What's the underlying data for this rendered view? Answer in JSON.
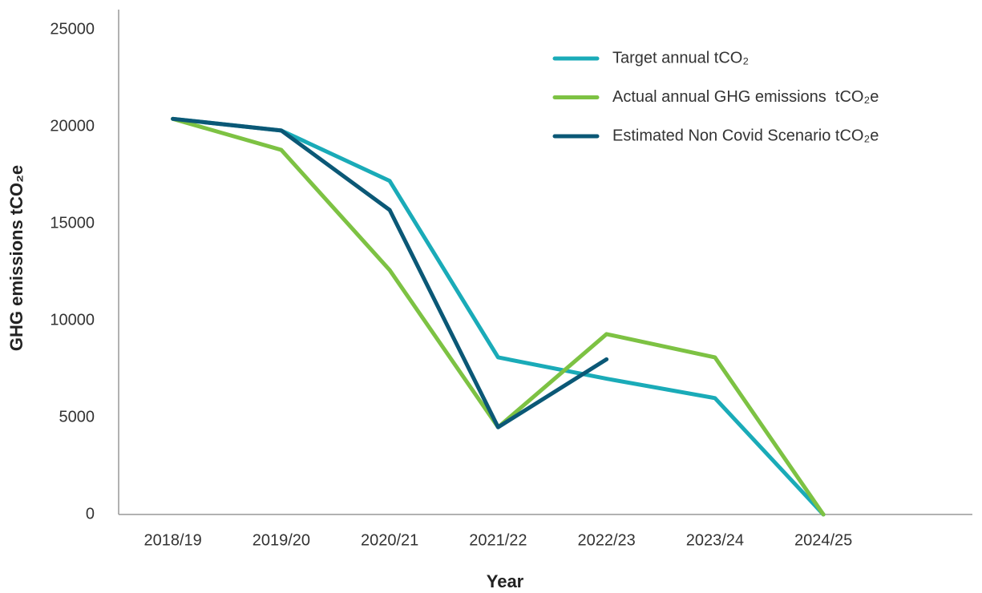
{
  "chart_data": {
    "type": "line",
    "x_label": "Year",
    "y_label": "GHG emissions tCO₂e",
    "categories": [
      "2018/19",
      "2019/20",
      "2020/21",
      "2021/22",
      "2022/23",
      "2023/24",
      "2024/25",
      null
    ],
    "series": [
      {
        "name": "Target annual tCO₂",
        "color": "#1aabb8",
        "values": [
          20400,
          19800,
          17200,
          8100,
          7000,
          6000,
          0,
          null
        ]
      },
      {
        "name": "Actual annual GHG emissions  tCO₂e",
        "color": "#7dc243",
        "values": [
          20400,
          18800,
          12600,
          4500,
          9300,
          8100,
          0,
          null
        ]
      },
      {
        "name": "Estimated Non Covid Scenario tCO₂e",
        "color": "#0b5876",
        "values": [
          20400,
          19800,
          15700,
          4500,
          8000,
          null,
          null,
          null
        ]
      }
    ],
    "ylim": [
      0,
      25000
    ],
    "yticks": [
      0,
      5000,
      10000,
      15000,
      20000,
      25000
    ],
    "grid": false,
    "legend": "upper right"
  }
}
